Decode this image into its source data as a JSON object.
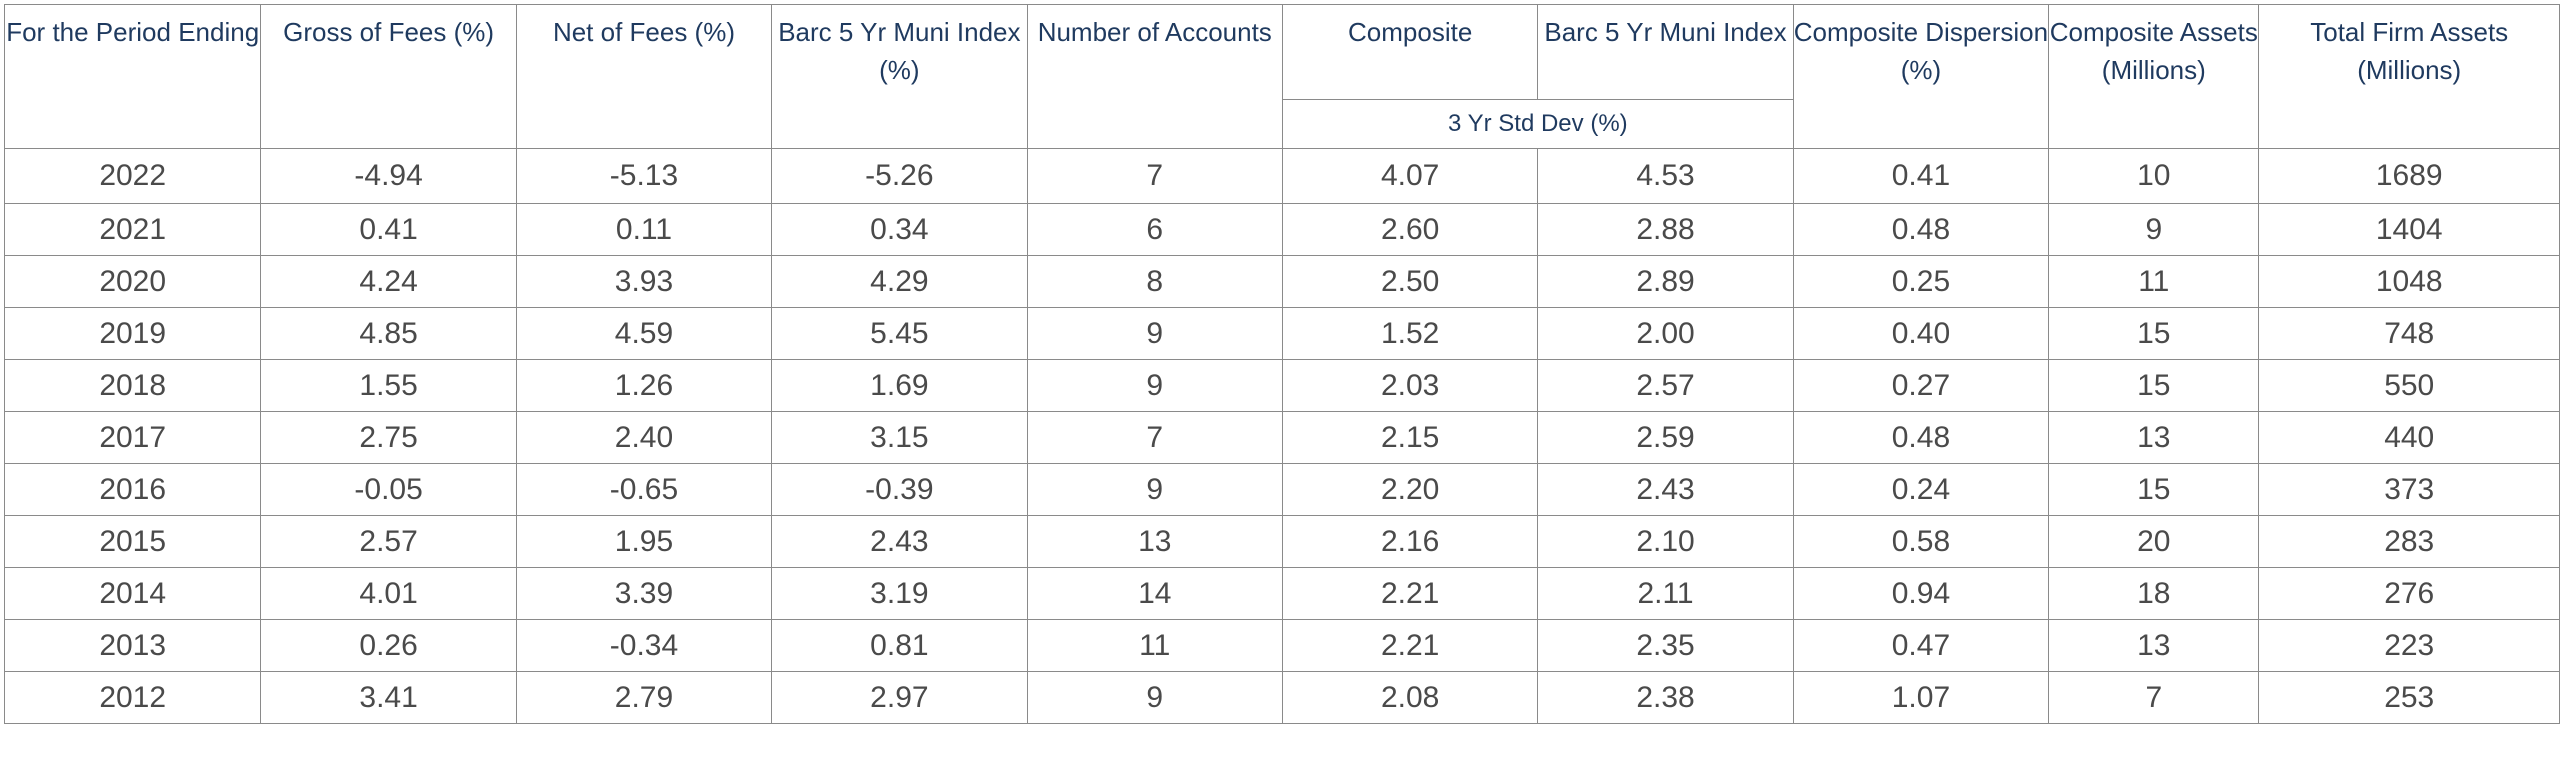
{
  "header": {
    "period": "For the Period Ending",
    "gross": "Gross of Fees (%)",
    "net": "Net of Fees (%)",
    "index": "Barc 5 Yr Muni Index (%)",
    "accounts": "Number of Accounts",
    "composite": "Composite",
    "index_sd": "Barc 5 Yr Muni Index",
    "std_dev_group": "3 Yr Std Dev (%)",
    "dispersion": "Composite Dispersion (%)",
    "comp_assets": "Composite Assets (Millions)",
    "firm_assets": "Total Firm Assets (Millions)"
  },
  "rows": [
    {
      "year": "2022",
      "gross": "-4.94",
      "net": "-5.13",
      "index": "-5.26",
      "accounts": "7",
      "comp_sd": "4.07",
      "index_sd": "4.53",
      "dispersion": "0.41",
      "comp_assets": "10",
      "firm_assets": "1689"
    },
    {
      "year": "2021",
      "gross": "0.41",
      "net": "0.11",
      "index": "0.34",
      "accounts": "6",
      "comp_sd": "2.60",
      "index_sd": "2.88",
      "dispersion": "0.48",
      "comp_assets": "9",
      "firm_assets": "1404"
    },
    {
      "year": "2020",
      "gross": "4.24",
      "net": "3.93",
      "index": "4.29",
      "accounts": "8",
      "comp_sd": "2.50",
      "index_sd": "2.89",
      "dispersion": "0.25",
      "comp_assets": "11",
      "firm_assets": "1048"
    },
    {
      "year": "2019",
      "gross": "4.85",
      "net": "4.59",
      "index": "5.45",
      "accounts": "9",
      "comp_sd": "1.52",
      "index_sd": "2.00",
      "dispersion": "0.40",
      "comp_assets": "15",
      "firm_assets": "748"
    },
    {
      "year": "2018",
      "gross": "1.55",
      "net": "1.26",
      "index": "1.69",
      "accounts": "9",
      "comp_sd": "2.03",
      "index_sd": "2.57",
      "dispersion": "0.27",
      "comp_assets": "15",
      "firm_assets": "550"
    },
    {
      "year": "2017",
      "gross": "2.75",
      "net": "2.40",
      "index": "3.15",
      "accounts": "7",
      "comp_sd": "2.15",
      "index_sd": "2.59",
      "dispersion": "0.48",
      "comp_assets": "13",
      "firm_assets": "440"
    },
    {
      "year": "2016",
      "gross": "-0.05",
      "net": "-0.65",
      "index": "-0.39",
      "accounts": "9",
      "comp_sd": "2.20",
      "index_sd": "2.43",
      "dispersion": "0.24",
      "comp_assets": "15",
      "firm_assets": "373"
    },
    {
      "year": "2015",
      "gross": "2.57",
      "net": "1.95",
      "index": "2.43",
      "accounts": "13",
      "comp_sd": "2.16",
      "index_sd": "2.10",
      "dispersion": "0.58",
      "comp_assets": "20",
      "firm_assets": "283"
    },
    {
      "year": "2014",
      "gross": "4.01",
      "net": "3.39",
      "index": "3.19",
      "accounts": "14",
      "comp_sd": "2.21",
      "index_sd": "2.11",
      "dispersion": "0.94",
      "comp_assets": "18",
      "firm_assets": "276"
    },
    {
      "year": "2013",
      "gross": "0.26",
      "net": "-0.34",
      "index": "0.81",
      "accounts": "11",
      "comp_sd": "2.21",
      "index_sd": "2.35",
      "dispersion": "0.47",
      "comp_assets": "13",
      "firm_assets": "223"
    },
    {
      "year": "2012",
      "gross": "3.41",
      "net": "2.79",
      "index": "2.97",
      "accounts": "9",
      "comp_sd": "2.08",
      "index_sd": "2.38",
      "dispersion": "1.07",
      "comp_assets": "7",
      "firm_assets": "253"
    }
  ]
}
